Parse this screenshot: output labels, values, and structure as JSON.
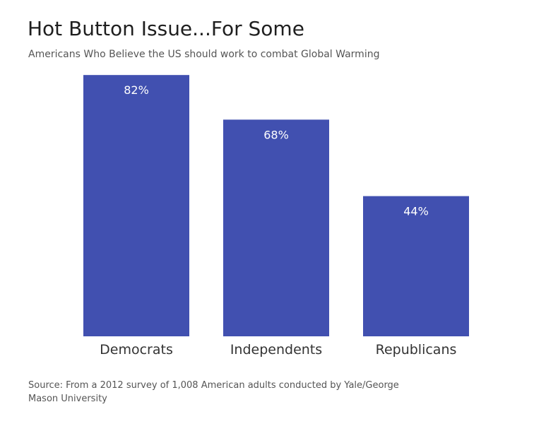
{
  "chart_data": {
    "type": "bar",
    "title": "Hot Button Issue...For Some",
    "subtitle": "Americans Who Believe the US should work to combat Global Warming",
    "categories": [
      "Democrats",
      "Independents",
      "Republicans"
    ],
    "values": [
      82,
      68,
      44
    ],
    "data_labels": [
      "82%",
      "68%",
      "44%"
    ],
    "ylim": [
      0,
      100
    ],
    "grid": false,
    "legend": "none",
    "bar_color": "#4150B0",
    "label_color": "#FFFFFF"
  },
  "source": "Source: From a 2012 survey of 1,008 American adults conducted by Yale/George Mason University"
}
